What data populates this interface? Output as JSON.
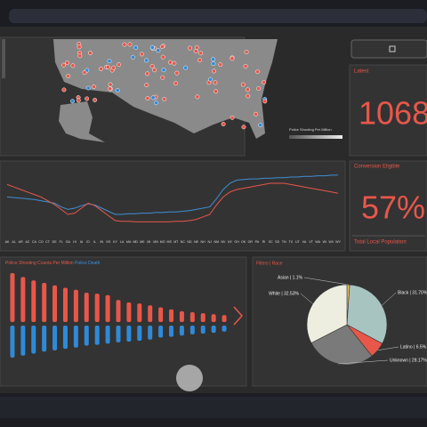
{
  "latest": {
    "title": "Latest",
    "value": "1068"
  },
  "eligible": {
    "title": "Conversion Eligible",
    "value": "57%",
    "footer": "Total Local Population"
  },
  "map": {
    "legend": "Police Shooting Per Million"
  },
  "chart_data": [
    {
      "type": "line",
      "categories": [
        "AK",
        "AL",
        "AR",
        "AZ",
        "CA",
        "CO",
        "CT",
        "DE",
        "FL",
        "GA",
        "HI",
        "IA",
        "ID",
        "IL",
        "IN",
        "KS",
        "KY",
        "LA",
        "MA",
        "MD",
        "ME",
        "MI",
        "MN",
        "MO",
        "MS",
        "MT",
        "NC",
        "ND",
        "NE",
        "NH",
        "NJ",
        "NM",
        "NV",
        "NY",
        "OH",
        "OK",
        "OR",
        "PA",
        "RI",
        "SC",
        "SD",
        "TN",
        "TX",
        "UT",
        "VA",
        "VT",
        "WA",
        "WI",
        "WV",
        "WY"
      ],
      "ylim": [
        0,
        100
      ],
      "series": [
        {
          "color": "#3f8fd6",
          "values": [
            58,
            57,
            56,
            55,
            54,
            52,
            50,
            48,
            42,
            38,
            40,
            44,
            47,
            45,
            40,
            35,
            30,
            30,
            31,
            31,
            32,
            32,
            33,
            33,
            34,
            34,
            35,
            36,
            38,
            40,
            42,
            55,
            70,
            80,
            85,
            86,
            87,
            87,
            88,
            88,
            89,
            89,
            90,
            90,
            91,
            91,
            92,
            92,
            93,
            93
          ]
        },
        {
          "color": "#e8574a",
          "values": [
            78,
            74,
            70,
            66,
            62,
            58,
            52,
            46,
            38,
            30,
            32,
            40,
            48,
            44,
            36,
            28,
            20,
            19,
            19,
            18,
            18,
            18,
            18,
            18,
            18,
            19,
            19,
            20,
            22,
            26,
            30,
            45,
            58,
            66,
            70,
            72,
            74,
            76,
            78,
            80,
            80,
            80,
            78,
            76,
            74,
            72,
            70,
            68,
            66,
            64
          ]
        }
      ]
    },
    {
      "type": "bar",
      "title": "Police Shooting Counts Per Million",
      "subtitle": "Police Death",
      "categories": [
        null,
        null,
        null,
        null,
        null,
        null,
        null,
        null,
        null,
        null,
        null,
        null,
        null,
        null,
        null,
        null,
        null,
        null,
        null,
        null,
        null
      ],
      "ylim": [
        0,
        100
      ],
      "series": [
        {
          "color": "#e8574a",
          "values": [
            100,
            92,
            85,
            80,
            75,
            70,
            66,
            60,
            58,
            55,
            45,
            40,
            38,
            34,
            30,
            26,
            22,
            20,
            18,
            16,
            14
          ]
        },
        {
          "color": "#2f8ad8",
          "values": [
            80,
            75,
            70,
            65,
            62,
            58,
            55,
            50,
            48,
            45,
            42,
            40,
            38,
            35,
            30,
            28,
            25,
            22,
            20,
            18,
            15
          ]
        }
      ]
    },
    {
      "type": "pie",
      "title": "Filters | Race",
      "categories": [
        "Asian",
        "Black",
        "Latino",
        "Unknown",
        "White"
      ],
      "values": [
        1.1,
        31.7,
        6.5,
        28.17,
        32.53
      ],
      "value_labels": [
        "Asian | 1.1%",
        "Black | 31.70%",
        "Latino | 6.5%",
        "Unknown | 28.17%",
        "White | 32.53%"
      ],
      "colors": [
        "#e8c25a",
        "#a8c4c0",
        "#e8574a",
        "#7a7a7a",
        "#eeeee0"
      ]
    }
  ]
}
